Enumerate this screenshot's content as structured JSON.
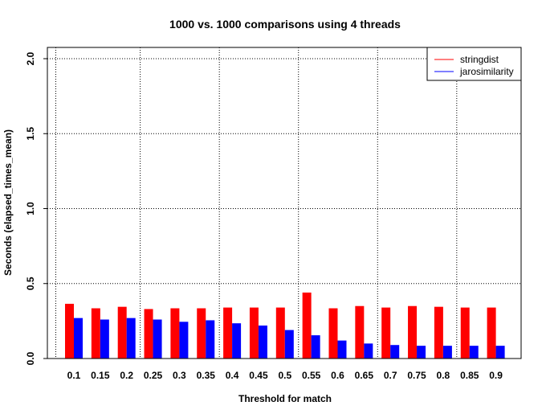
{
  "chart_data": {
    "type": "bar",
    "title": "1000 vs. 1000 comparisons using 4 threads",
    "xlabel": "Threshold for match",
    "ylabel": "Seconds (elapsed_times_mean)",
    "ylim": [
      0,
      2.0
    ],
    "yticks": [
      "0.0",
      "0.5",
      "1.0",
      "1.5",
      "2.0"
    ],
    "yticks_values": [
      0,
      0.5,
      1.0,
      1.5,
      2.0
    ],
    "grid": true,
    "legend_position": "top-right",
    "categories": [
      "0.1",
      "0.15",
      "0.2",
      "0.25",
      "0.3",
      "0.35",
      "0.4",
      "0.45",
      "0.5",
      "0.55",
      "0.6",
      "0.65",
      "0.7",
      "0.75",
      "0.8",
      "0.85",
      "0.9"
    ],
    "series": [
      {
        "name": "stringdist",
        "color": "#ff0000",
        "values": [
          0.365,
          0.335,
          0.345,
          0.33,
          0.335,
          0.335,
          0.34,
          0.34,
          0.34,
          0.44,
          0.335,
          0.35,
          0.34,
          0.35,
          0.345,
          0.34,
          0.34
        ]
      },
      {
        "name": "jarosimilarity",
        "color": "#0000ff",
        "values": [
          0.27,
          0.26,
          0.27,
          0.26,
          0.245,
          0.255,
          0.235,
          0.22,
          0.19,
          0.155,
          0.12,
          0.1,
          0.09,
          0.085,
          0.085,
          0.085,
          0.085
        ]
      }
    ]
  }
}
